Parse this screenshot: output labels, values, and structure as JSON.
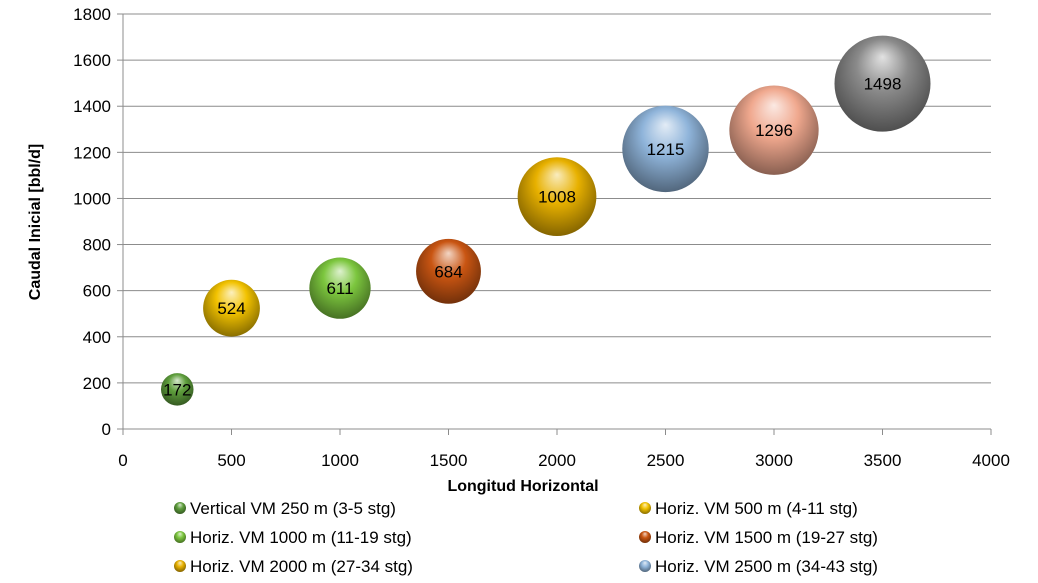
{
  "chart_data": {
    "type": "bubble",
    "xlabel": "Longitud Horizontal",
    "ylabel": "Caudal Inicial [bbl/d]",
    "xlim": [
      0,
      4000
    ],
    "ylim": [
      0,
      1800
    ],
    "xticks": [
      0,
      500,
      1000,
      1500,
      2000,
      2500,
      3000,
      3500,
      4000
    ],
    "yticks": [
      0,
      200,
      400,
      600,
      800,
      1000,
      1200,
      1400,
      1600,
      1800
    ],
    "grid": "horizontal",
    "legend_position": "bottom",
    "series": [
      {
        "name": "Vertical VM 250 m (3-5 stg)",
        "x": 250,
        "y": 172,
        "size": 172,
        "label": "172",
        "color": "#5e9e3c"
      },
      {
        "name": "Horiz. VM 500 m (4-11 stg)",
        "x": 500,
        "y": 524,
        "size": 524,
        "label": "524",
        "color": "#f2c200"
      },
      {
        "name": "Horiz.  VM 1000 m (11-19 stg)",
        "x": 1000,
        "y": 611,
        "size": 611,
        "label": "611",
        "color": "#7cc63e"
      },
      {
        "name": "Horiz. VM 1500 m (19-27 stg)",
        "x": 1500,
        "y": 684,
        "size": 684,
        "label": "684",
        "color": "#c95512"
      },
      {
        "name": "Horiz. VM 2000 m (27-34 stg)",
        "x": 2000,
        "y": 1008,
        "size": 1008,
        "label": "1008",
        "color": "#e8b100"
      },
      {
        "name": "Horiz. VM 2500 m (34-43 stg)",
        "x": 2500,
        "y": 1215,
        "size": 1215,
        "label": "1215",
        "color": "#8fb4da"
      },
      {
        "name": "",
        "x": 3000,
        "y": 1296,
        "size": 1296,
        "label": "1296",
        "color": "#f0a88e"
      },
      {
        "name": "",
        "x": 3500,
        "y": 1498,
        "size": 1498,
        "label": "1498",
        "color": "#8a8a8a"
      }
    ]
  }
}
